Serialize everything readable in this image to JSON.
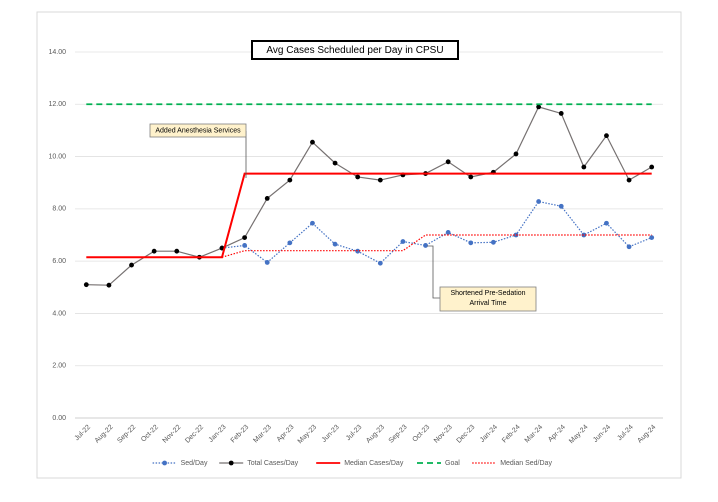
{
  "chart_data": {
    "type": "line",
    "title": "Avg Cases Scheduled per Day in CPSU",
    "categories": [
      "Jul-22",
      "Aug-22",
      "Sep-22",
      "Oct-22",
      "Nov-22",
      "Dec-22",
      "Jan-23",
      "Feb-23",
      "Mar-23",
      "Apr-23",
      "May-23",
      "Jun-23",
      "Jul-23",
      "Aug-23",
      "Sep-23",
      "Oct-23",
      "Nov-23",
      "Dec-23",
      "Jan-24",
      "Feb-24",
      "Mar-24",
      "Apr-24",
      "May-24",
      "Jun-24",
      "Jul-24",
      "Aug-24"
    ],
    "series": [
      {
        "name": "Sed/Day",
        "color": "#4472c4",
        "line_style": "dotted",
        "marker": true,
        "values": [
          null,
          null,
          null,
          null,
          null,
          null,
          6.5,
          6.6,
          5.95,
          6.7,
          7.45,
          6.65,
          6.38,
          5.92,
          6.75,
          6.6,
          7.1,
          6.7,
          6.72,
          7.0,
          8.28,
          8.1,
          7.0,
          7.45,
          6.55,
          6.9
        ]
      },
      {
        "name": "Total Cases/Day",
        "color": "#000000",
        "line_color": "#767171",
        "line_style": "solid",
        "marker": true,
        "values": [
          5.1,
          5.08,
          5.85,
          6.38,
          6.38,
          6.15,
          6.5,
          6.9,
          8.4,
          9.1,
          10.55,
          9.75,
          9.22,
          9.1,
          9.3,
          9.35,
          9.8,
          9.22,
          9.4,
          10.1,
          11.9,
          11.65,
          9.6,
          10.8,
          9.1,
          9.6
        ]
      },
      {
        "name": "Median Cases/Day",
        "color": "#ff0000",
        "line_style": "solid",
        "marker": false,
        "values": [
          6.15,
          6.15,
          6.15,
          6.15,
          6.15,
          6.15,
          6.15,
          9.35,
          9.35,
          9.35,
          9.35,
          9.35,
          9.35,
          9.35,
          9.35,
          9.35,
          9.35,
          9.35,
          9.35,
          9.35,
          9.35,
          9.35,
          9.35,
          9.35,
          9.35,
          9.35
        ]
      },
      {
        "name": "Goal",
        "color": "#00b050",
        "line_style": "dashed",
        "marker": false,
        "values": [
          12,
          12,
          12,
          12,
          12,
          12,
          12,
          12,
          12,
          12,
          12,
          12,
          12,
          12,
          12,
          12,
          12,
          12,
          12,
          12,
          12,
          12,
          12,
          12,
          12,
          12
        ]
      },
      {
        "name": "Median Sed/Day",
        "color": "#ff0000",
        "line_style": "dotted",
        "marker": false,
        "values": [
          null,
          null,
          null,
          null,
          null,
          null,
          6.15,
          6.4,
          6.4,
          6.4,
          6.4,
          6.4,
          6.4,
          6.4,
          6.4,
          7.0,
          7.0,
          7.0,
          7.0,
          7.0,
          7.0,
          7.0,
          7.0,
          7.0,
          7.0,
          7.0
        ]
      }
    ],
    "annotations": [
      "Added Anesthesia Services",
      "Shortened Pre-Sedation Arrival Time"
    ],
    "ylim": [
      0,
      14
    ],
    "yticks": [
      {
        "value": 0,
        "label": "0.00"
      },
      {
        "value": 2,
        "label": "2.00"
      },
      {
        "value": 4,
        "label": "4.00"
      },
      {
        "value": 6,
        "label": "6.00"
      },
      {
        "value": 8,
        "label": "8.00"
      },
      {
        "value": 10,
        "label": "10.00"
      },
      {
        "value": 12,
        "label": "12.00"
      },
      {
        "value": 14,
        "label": "14.00"
      }
    ],
    "grid": true,
    "legend": "bottom"
  }
}
